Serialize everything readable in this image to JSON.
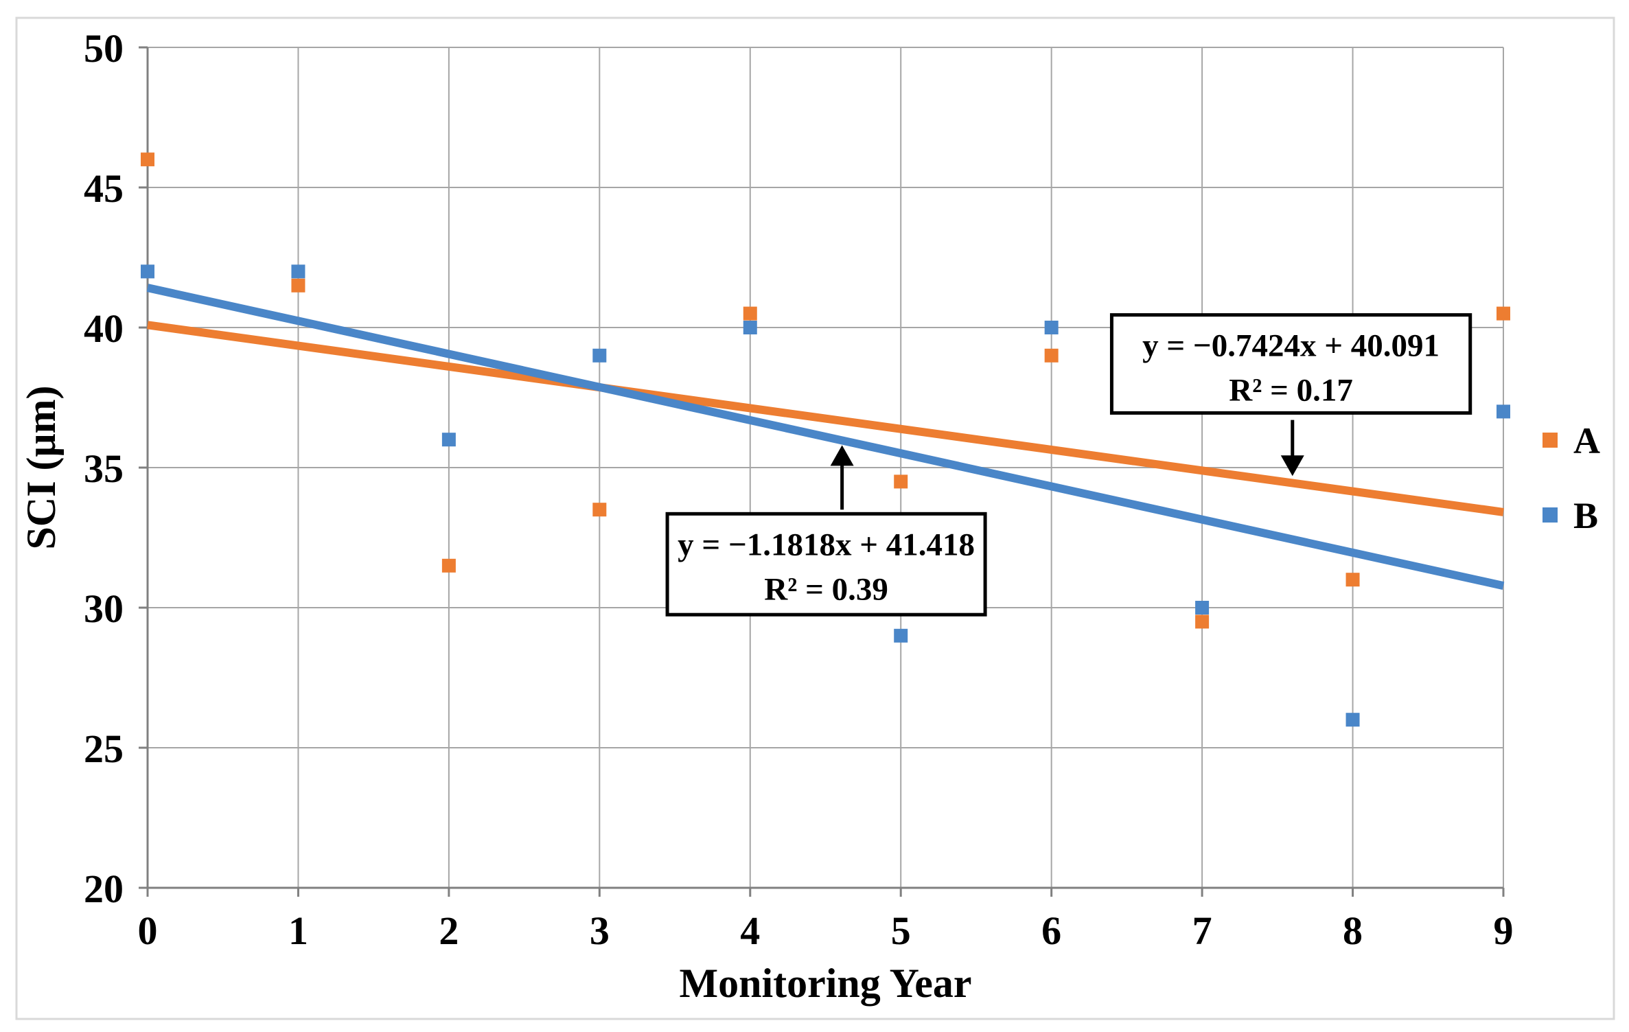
{
  "figure": {
    "background_color": "#FFFFFF",
    "frame_color": "#D9D9D9"
  },
  "chart_data": {
    "type": "scatter",
    "title": "",
    "xlabel": "Monitoring Year",
    "ylabel": "SCI (μm)",
    "xlim": [
      0,
      9
    ],
    "ylim": [
      20,
      50
    ],
    "x_ticks": [
      "0",
      "1",
      "2",
      "3",
      "4",
      "5",
      "6",
      "7",
      "8",
      "9"
    ],
    "y_ticks": [
      "20",
      "25",
      "30",
      "35",
      "40",
      "45",
      "50"
    ],
    "grid": true,
    "gridline_color": "#A6A6A6",
    "axis_color": "#808080",
    "legend_position": "right",
    "x": [
      0,
      1,
      2,
      3,
      4,
      5,
      6,
      7,
      8,
      9
    ],
    "series": [
      {
        "name": "A",
        "color": "#ED7D31",
        "marker": "square",
        "values": [
          46,
          41.5,
          31.5,
          33.5,
          40.5,
          34.5,
          39,
          29.5,
          31,
          40.5
        ],
        "trendline": {
          "slope": -0.7424,
          "intercept": 40.091,
          "r_squared": 0.17,
          "equation_label": "y = −0.7424x + 40.091",
          "r2_label": "R² = 0.17"
        }
      },
      {
        "name": "B",
        "color": "#4A86C8",
        "marker": "square",
        "values": [
          42,
          42,
          36,
          39,
          40,
          29,
          40,
          30,
          26,
          37
        ],
        "trendline": {
          "slope": -1.1818,
          "intercept": 41.418,
          "r_squared": 0.39,
          "equation_label": "y = −1.1818x + 41.418",
          "r2_label": "R² = 0.39"
        }
      }
    ],
    "annotations": [
      {
        "series": "A",
        "lines": [
          "y = −0.7424x + 40.091",
          "R² = 0.17"
        ],
        "border_color": "#000000",
        "fill_color": "#FFFFFF",
        "box": {
          "x1": 6.4,
          "x2": 8.78,
          "y1": 36.95,
          "y2": 40.45
        },
        "arrow": {
          "x": 7.6,
          "from_y": 36.7,
          "to_y": 34.7,
          "direction": "down"
        }
      },
      {
        "series": "B",
        "lines": [
          "y = −1.1818x + 41.418",
          "R² = 0.39"
        ],
        "border_color": "#000000",
        "fill_color": "#FFFFFF",
        "box": {
          "x1": 3.45,
          "x2": 5.56,
          "y1": 29.75,
          "y2": 33.35
        },
        "arrow": {
          "x": 4.61,
          "from_y": 33.5,
          "to_y": 35.8,
          "direction": "up"
        }
      }
    ],
    "legend": {
      "items": [
        {
          "label": "A",
          "color": "#ED7D31"
        },
        {
          "label": "B",
          "color": "#4A86C8"
        }
      ]
    }
  }
}
